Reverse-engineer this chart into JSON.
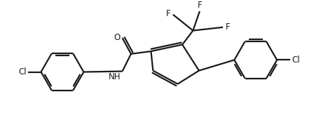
{
  "bg_color": "#ffffff",
  "line_color": "#1a1a1a",
  "line_width": 1.6,
  "font_size": 8.5,
  "figsize": [
    4.48,
    1.71
  ],
  "dpi": 100,
  "xlim": [
    0,
    4.48
  ],
  "ylim": [
    0,
    1.71
  ]
}
